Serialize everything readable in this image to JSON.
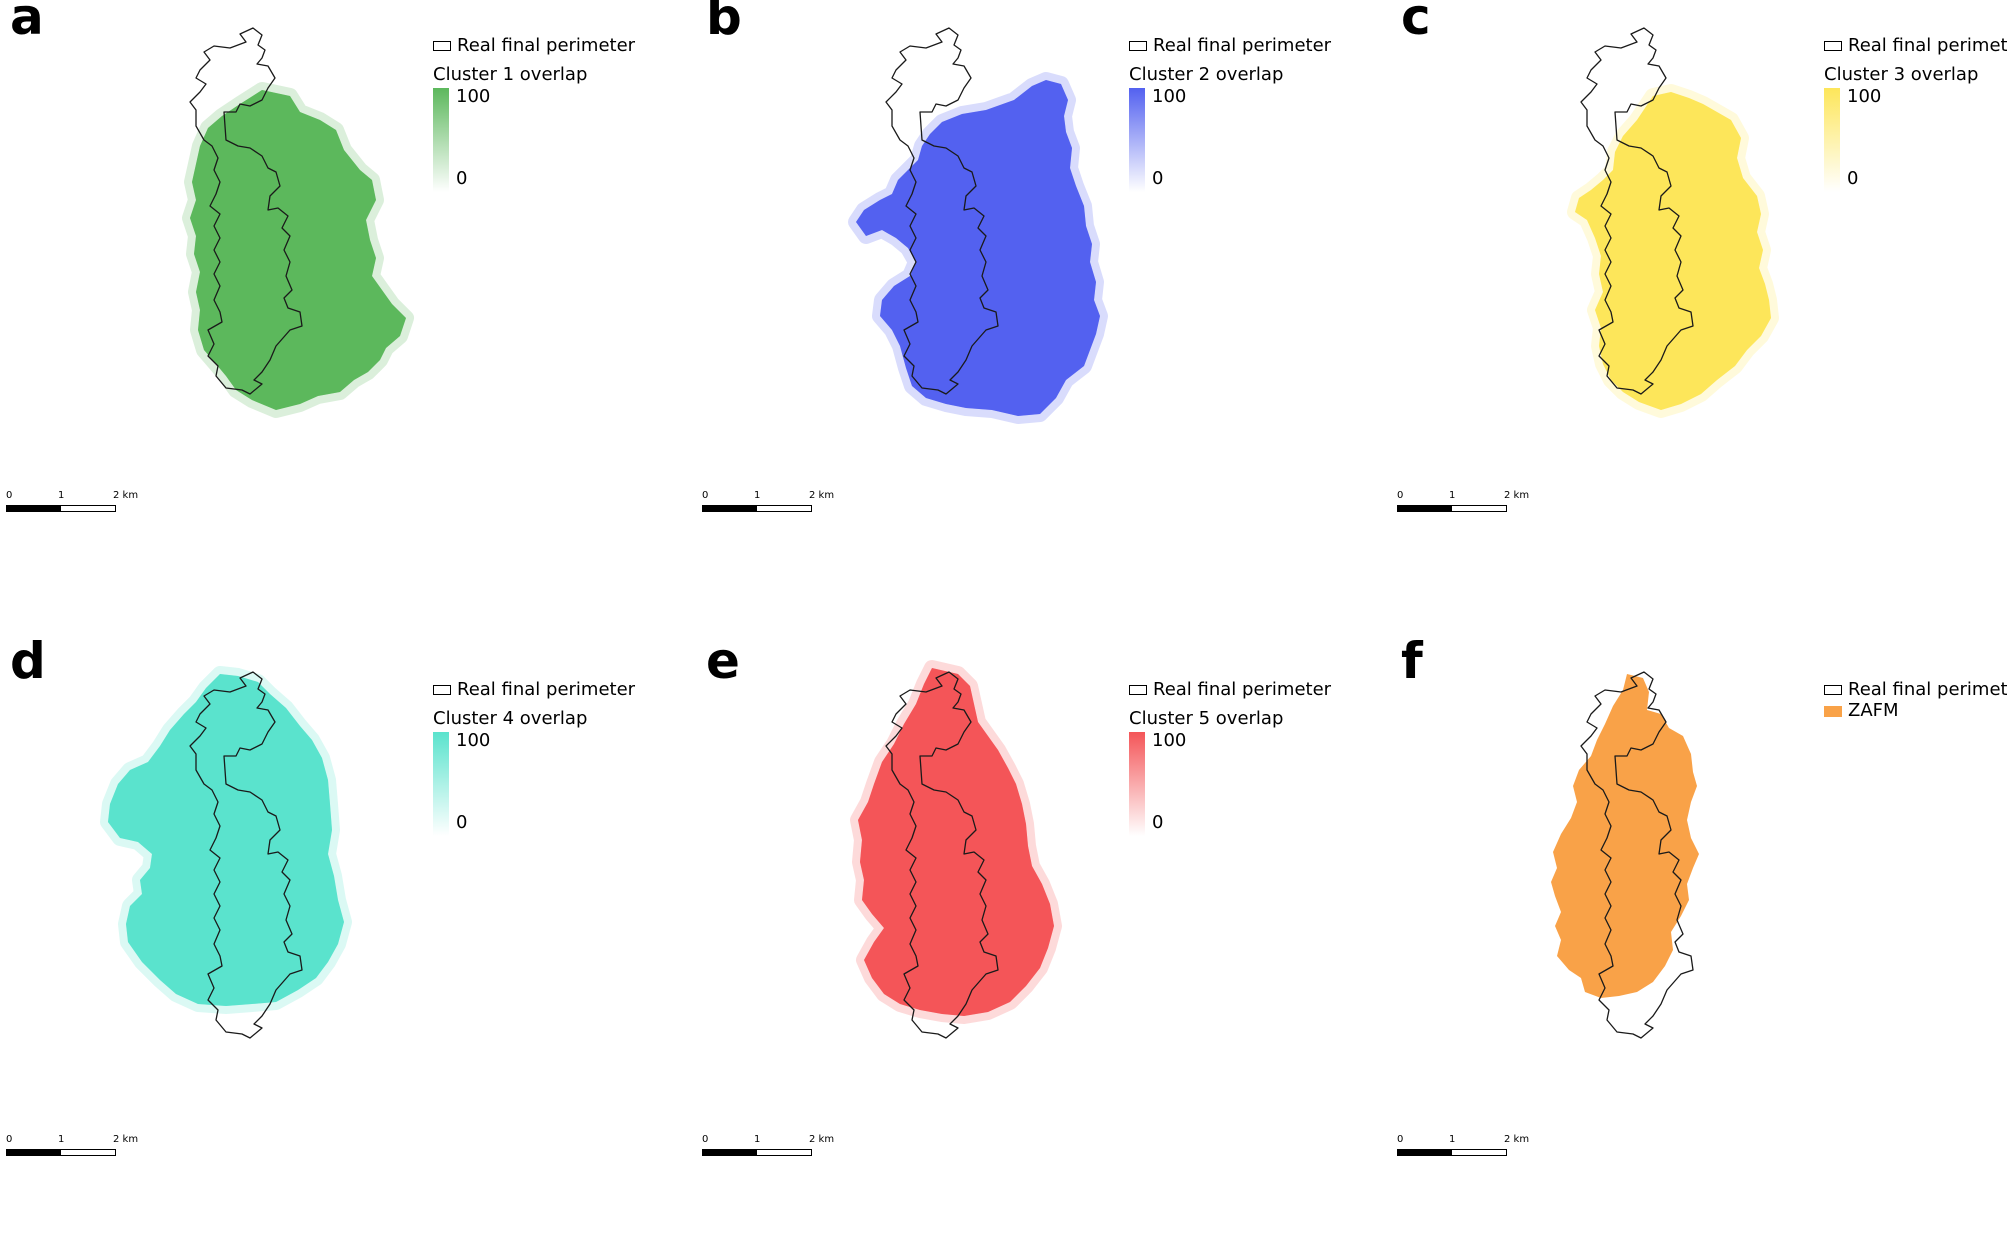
{
  "panels": [
    {
      "letter": "a",
      "perimeter_label": "Real final perimeter",
      "overlap_title": "Cluster 1 overlap",
      "ramp_max": "100",
      "ramp_min": "0",
      "color": "#5cb85c",
      "scale": {
        "l0": "0",
        "l1": "1",
        "l2": "2 km"
      }
    },
    {
      "letter": "b",
      "perimeter_label": "Real final perimeter",
      "overlap_title": "Cluster 2 overlap",
      "ramp_max": "100",
      "ramp_min": "0",
      "color": "#5361f0",
      "scale": {
        "l0": "0",
        "l1": "1",
        "l2": "2 km"
      }
    },
    {
      "letter": "c",
      "perimeter_label": "Real final perimeter",
      "overlap_title": "Cluster 3 overlap",
      "ramp_max": "100",
      "ramp_min": "0",
      "color": "#fde65a",
      "scale": {
        "l0": "0",
        "l1": "1",
        "l2": "2 km"
      }
    },
    {
      "letter": "d",
      "perimeter_label": "Real final perimeter",
      "overlap_title": "Cluster 4 overlap",
      "ramp_max": "100",
      "ramp_min": "0",
      "color": "#5ae3cd",
      "scale": {
        "l0": "0",
        "l1": "1",
        "l2": "2 km"
      }
    },
    {
      "letter": "e",
      "perimeter_label": "Real final perimeter",
      "overlap_title": "Cluster 5 overlap",
      "ramp_max": "100",
      "ramp_min": "0",
      "color": "#f45558",
      "scale": {
        "l0": "0",
        "l1": "1",
        "l2": "2 km"
      }
    },
    {
      "letter": "f",
      "perimeter_label": "Real final perimeter",
      "zafm_label": "ZAFM",
      "color": "#f9a248",
      "scale": {
        "l0": "0",
        "l1": "1",
        "l2": "2 km"
      }
    }
  ]
}
